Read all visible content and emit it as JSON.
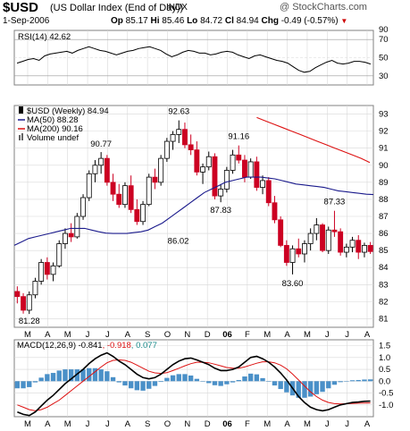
{
  "header": {
    "symbol": "$USD",
    "name": "(US Dollar Index (End of Day))",
    "exchange": "INDX",
    "brand": "@ StockCharts.com",
    "date": "1-Sep-2006",
    "open_label": "Op",
    "open": "85.17",
    "high_label": "Hi",
    "high": "85.46",
    "low_label": "Lo",
    "low": "84.72",
    "close_label": "Cl",
    "close": "84.94",
    "change_label": "Chg",
    "change": "-0.49 (-0.57%)",
    "change_color": "#cc0000"
  },
  "colors": {
    "up": "#000000",
    "down": "#cc0022",
    "ma50": "#1a1a8c",
    "ma200": "#dd1111",
    "macd": "#000000",
    "signal": "#dd1111",
    "hist": "#4a90c8",
    "grid": "#d8d8d8",
    "frame": "#808080"
  },
  "chart_data": [
    {
      "type": "line",
      "panel": "rsi",
      "legend": "RSI(14) 42.62",
      "ylim": [
        20,
        80
      ],
      "yticks": [
        30,
        50,
        70,
        90
      ],
      "overbought": 70,
      "oversold": 30,
      "values": [
        44,
        46,
        48,
        49,
        47,
        52,
        54,
        55,
        56,
        57,
        55,
        58,
        60,
        62,
        60,
        58,
        57,
        55,
        53,
        55,
        57,
        58,
        60,
        61,
        62,
        60,
        58,
        54,
        51,
        53,
        56,
        58,
        57,
        55,
        55,
        53,
        54,
        56,
        57,
        56,
        53,
        51,
        49,
        52,
        53,
        51,
        49,
        47,
        46,
        44,
        40,
        36,
        34,
        35,
        39,
        42,
        45,
        47,
        44,
        43,
        44,
        46,
        46,
        45,
        43
      ]
    },
    {
      "type": "candlestick",
      "panel": "price",
      "series_label": "$USD (Weekly) 84.94",
      "ylim": [
        80.5,
        93.5
      ],
      "yticks": [
        81,
        82,
        83,
        84,
        85,
        86,
        87,
        88,
        89,
        90,
        91,
        92,
        93
      ],
      "xlabels": [
        "M",
        "A",
        "M",
        "J",
        "J",
        "A",
        "S",
        "O",
        "N",
        "D",
        "06",
        "F",
        "M",
        "A",
        "M",
        "J",
        "J",
        "A"
      ],
      "annotations": [
        {
          "text": "81.28",
          "bar": 2
        },
        {
          "text": "90.77",
          "bar": 20
        },
        {
          "text": "92.63",
          "bar": 38
        },
        {
          "text": "86.02",
          "bar": 26
        },
        {
          "text": "91.16",
          "bar": 50
        },
        {
          "text": "87.83",
          "bar": 43
        },
        {
          "text": "87.33",
          "bar": 67
        },
        {
          "text": "83.60",
          "bar": 59
        }
      ],
      "ohlc": [
        [
          82.6,
          82.9,
          81.9,
          82.3
        ],
        [
          82.3,
          82.5,
          81.3,
          81.5
        ],
        [
          81.5,
          82.6,
          81.28,
          82.4
        ],
        [
          82.4,
          83.4,
          82.2,
          83.2
        ],
        [
          83.2,
          84.5,
          83.0,
          84.3
        ],
        [
          84.3,
          84.6,
          83.3,
          83.6
        ],
        [
          83.6,
          84.3,
          83.2,
          84.1
        ],
        [
          84.1,
          85.6,
          84.0,
          85.4
        ],
        [
          85.4,
          86.3,
          85.1,
          86.0
        ],
        [
          86.0,
          86.6,
          85.5,
          85.8
        ],
        [
          85.8,
          87.2,
          85.7,
          87.0
        ],
        [
          87.0,
          88.3,
          86.8,
          88.1
        ],
        [
          88.1,
          89.7,
          87.9,
          89.5
        ],
        [
          89.5,
          90.3,
          89.0,
          90.0
        ],
        [
          90.0,
          90.77,
          89.5,
          90.4
        ],
        [
          90.4,
          90.6,
          88.8,
          89.0
        ],
        [
          89.0,
          89.5,
          87.9,
          88.3
        ],
        [
          88.3,
          88.9,
          87.5,
          87.7
        ],
        [
          87.7,
          89.0,
          87.5,
          88.8
        ],
        [
          88.8,
          89.4,
          87.2,
          87.4
        ],
        [
          87.4,
          88.0,
          86.5,
          86.7
        ],
        [
          86.7,
          87.9,
          86.5,
          87.7
        ],
        [
          87.7,
          89.5,
          87.6,
          89.3
        ],
        [
          89.3,
          89.8,
          88.6,
          89.0
        ],
        [
          89.0,
          90.6,
          88.8,
          90.4
        ],
        [
          90.4,
          91.6,
          90.2,
          91.4
        ],
        [
          91.4,
          92.0,
          90.9,
          91.8
        ],
        [
          91.8,
          92.63,
          91.3,
          92.1
        ],
        [
          92.1,
          92.5,
          91.0,
          91.2
        ],
        [
          91.2,
          91.8,
          90.6,
          90.9
        ],
        [
          90.9,
          91.4,
          89.4,
          89.6
        ],
        [
          89.6,
          90.1,
          88.9,
          89.9
        ],
        [
          89.9,
          90.8,
          89.7,
          90.5
        ],
        [
          90.5,
          90.7,
          88.0,
          88.2
        ],
        [
          88.2,
          88.9,
          87.83,
          88.6
        ],
        [
          88.6,
          89.9,
          88.4,
          89.7
        ],
        [
          89.7,
          90.9,
          89.5,
          90.6
        ],
        [
          90.6,
          91.16,
          90.1,
          90.3
        ],
        [
          90.3,
          90.6,
          89.0,
          89.3
        ],
        [
          89.3,
          90.4,
          89.2,
          90.2
        ],
        [
          90.2,
          90.5,
          88.5,
          88.7
        ],
        [
          88.7,
          89.4,
          88.3,
          89.1
        ],
        [
          89.1,
          89.3,
          87.6,
          87.8
        ],
        [
          87.8,
          88.2,
          86.6,
          86.8
        ],
        [
          86.8,
          87.0,
          85.2,
          85.3
        ],
        [
          85.3,
          85.6,
          84.1,
          84.3
        ],
        [
          84.3,
          85.3,
          83.6,
          85.1
        ],
        [
          85.1,
          85.7,
          84.6,
          84.8
        ],
        [
          84.8,
          85.6,
          84.3,
          85.4
        ],
        [
          85.4,
          86.3,
          85.0,
          86.0
        ],
        [
          86.0,
          86.9,
          85.6,
          86.5
        ],
        [
          86.5,
          86.6,
          84.9,
          85.0
        ],
        [
          85.0,
          86.4,
          84.8,
          86.2
        ],
        [
          86.2,
          87.33,
          85.8,
          86.1
        ],
        [
          86.1,
          86.3,
          84.7,
          84.9
        ],
        [
          84.9,
          85.4,
          84.6,
          85.2
        ],
        [
          85.2,
          85.8,
          84.9,
          85.6
        ],
        [
          85.6,
          85.9,
          84.5,
          84.9
        ],
        [
          84.9,
          85.46,
          84.6,
          85.3
        ],
        [
          85.3,
          85.5,
          84.8,
          84.94
        ]
      ],
      "series": [
        {
          "name": "MA(50) 88.28",
          "values": [
            85.3,
            85.5,
            85.7,
            85.8,
            85.9,
            86.0,
            86.1,
            86.2,
            86.3,
            86.3,
            86.3,
            86.2,
            86.1,
            86.02,
            86.0,
            86.0,
            86.0,
            86.05,
            86.1,
            86.2,
            86.4,
            86.6,
            86.9,
            87.2,
            87.5,
            87.8,
            88.1,
            88.4,
            88.6,
            88.8,
            89.0,
            89.1,
            89.2,
            89.3,
            89.3,
            89.3,
            89.25,
            89.2,
            89.1,
            89.0,
            88.9,
            88.85,
            88.8,
            88.75,
            88.7,
            88.6,
            88.5,
            88.45,
            88.4,
            88.35,
            88.3,
            88.28
          ],
          "offset": 8
        },
        {
          "name": "MA(200) 90.16",
          "values": [
            92.8,
            92.6,
            92.4,
            92.2,
            92.0,
            91.8,
            91.6,
            91.4,
            91.2,
            91.0,
            90.8,
            90.6,
            90.4,
            90.16
          ],
          "offset": 44,
          "step": 1.3
        },
        {
          "name": "Volume undef",
          "values": []
        }
      ]
    },
    {
      "type": "line",
      "panel": "macd",
      "legend_parts": [
        "MACD(12,26,9)",
        "-0.841",
        "-0.918",
        "0.077"
      ],
      "ylim": [
        -1.5,
        1.75
      ],
      "yticks": [
        -1.0,
        -0.5,
        0.0,
        0.5,
        1.0,
        1.5
      ],
      "macd": [
        -1.3,
        -1.4,
        -1.45,
        -1.3,
        -1.05,
        -0.8,
        -0.6,
        -0.35,
        -0.1,
        0.1,
        0.3,
        0.5,
        0.75,
        0.95,
        1.1,
        1.2,
        1.05,
        0.85,
        0.7,
        0.5,
        0.3,
        0.15,
        0.1,
        0.15,
        0.3,
        0.5,
        0.7,
        0.85,
        0.95,
        0.98,
        0.9,
        0.8,
        0.7,
        0.55,
        0.45,
        0.45,
        0.5,
        0.6,
        0.8,
        1.0,
        1.05,
        0.95,
        0.8,
        0.6,
        0.35,
        0.05,
        -0.3,
        -0.65,
        -0.9,
        -1.1,
        -1.2,
        -1.25,
        -1.2,
        -1.1,
        -1.0,
        -0.95,
        -0.9,
        -0.88,
        -0.85,
        -0.841
      ],
      "signal": [
        -1.0,
        -1.1,
        -1.2,
        -1.25,
        -1.2,
        -1.1,
        -0.95,
        -0.8,
        -0.6,
        -0.4,
        -0.2,
        0.0,
        0.2,
        0.4,
        0.6,
        0.78,
        0.88,
        0.9,
        0.88,
        0.8,
        0.68,
        0.55,
        0.42,
        0.35,
        0.33,
        0.36,
        0.45,
        0.55,
        0.65,
        0.74,
        0.8,
        0.8,
        0.78,
        0.72,
        0.65,
        0.58,
        0.55,
        0.55,
        0.6,
        0.68,
        0.76,
        0.82,
        0.82,
        0.78,
        0.68,
        0.52,
        0.3,
        0.05,
        -0.2,
        -0.45,
        -0.65,
        -0.8,
        -0.9,
        -0.95,
        -0.96,
        -0.95,
        -0.94,
        -0.93,
        -0.92,
        -0.918
      ],
      "xlabels": [
        "M",
        "A",
        "M",
        "J",
        "J",
        "A",
        "S",
        "O",
        "N",
        "D",
        "06",
        "F",
        "M",
        "A",
        "M",
        "J",
        "J",
        "A"
      ]
    }
  ]
}
